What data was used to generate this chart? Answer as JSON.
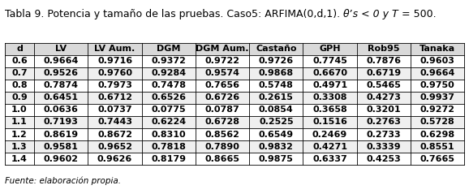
{
  "title_parts": [
    {
      "text": "Tabla 9. Potencia y tamaño de las pruebas. Caso5: ARFIMA(0,d,1). ",
      "style": "normal"
    },
    {
      "text": "θʼs < 0 y ",
      "style": "italic"
    },
    {
      "text": "T",
      "style": "italic"
    },
    {
      "text": " = 500.",
      "style": "normal"
    }
  ],
  "columns": [
    "d",
    "LV",
    "LV Aum.",
    "DGM",
    "DGM Aum.",
    "Castaño",
    "GPH",
    "Rob95",
    "Tanaka"
  ],
  "rows": [
    [
      "0.6",
      "0.9664",
      "0.9716",
      "0.9372",
      "0.9722",
      "0.9726",
      "0.7745",
      "0.7876",
      "0.9603"
    ],
    [
      "0.7",
      "0.9526",
      "0.9760",
      "0.9284",
      "0.9574",
      "0.9868",
      "0.6670",
      "0.6719",
      "0.9664"
    ],
    [
      "0.8",
      "0.7874",
      "0.7973",
      "0.7478",
      "0.7656",
      "0.5748",
      "0.4971",
      "0.5465",
      "0.9750"
    ],
    [
      "0.9",
      "0.6451",
      "0.6712",
      "0.6526",
      "0.6726",
      "0.2615",
      "0.3308",
      "0.4273",
      "0.9937"
    ],
    [
      "1.0",
      "0.0636",
      "0.0737",
      "0.0775",
      "0.0787",
      "0.0854",
      "0.3658",
      "0.3201",
      "0.9272"
    ],
    [
      "1.1",
      "0.7193",
      "0.7443",
      "0.6224",
      "0.6728",
      "0.2525",
      "0.1516",
      "0.2763",
      "0.5728"
    ],
    [
      "1.2",
      "0.8619",
      "0.8672",
      "0.8310",
      "0.8562",
      "0.6549",
      "0.2469",
      "0.2733",
      "0.6298"
    ],
    [
      "1.3",
      "0.9581",
      "0.9652",
      "0.7818",
      "0.7890",
      "0.9832",
      "0.4271",
      "0.3339",
      "0.8551"
    ],
    [
      "1.4",
      "0.9602",
      "0.9626",
      "0.8179",
      "0.8665",
      "0.9875",
      "0.6337",
      "0.4253",
      "0.7665"
    ]
  ],
  "footer": "Fuente: elaboración propia.",
  "background_color": "#ffffff",
  "header_bg": "#d9d9d9",
  "row_bg_even": "#ffffff",
  "row_bg_odd": "#efefef",
  "text_color": "#000000",
  "border_color": "#000000",
  "title_fontsize": 9.0,
  "table_fontsize": 8.0,
  "footer_fontsize": 7.5,
  "col_widths_raw": [
    0.55,
    1.0,
    1.0,
    1.0,
    1.0,
    1.0,
    1.0,
    1.0,
    1.0
  ]
}
